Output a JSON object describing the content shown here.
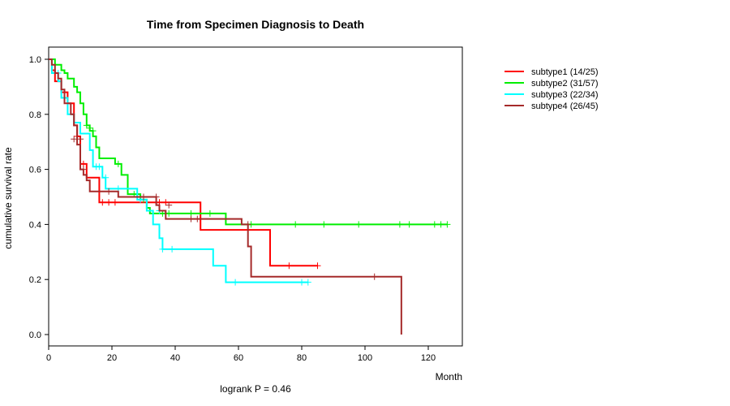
{
  "chart_data": {
    "type": "line",
    "subtype": "kaplan-meier",
    "title": "Time from Specimen Diagnosis to Death",
    "xlabel": "Month",
    "ylabel": "cumulative survival rate",
    "xlim": [
      0,
      130
    ],
    "ylim": [
      0,
      1
    ],
    "x_ticks": [
      0,
      20,
      40,
      60,
      80,
      100,
      120
    ],
    "y_ticks": [
      0.0,
      0.2,
      0.4,
      0.6,
      0.8,
      1.0
    ],
    "y_tick_labels": [
      "0.0",
      "0.2",
      "0.4",
      "0.6",
      "0.8",
      "1.0"
    ],
    "annotation": "logrank P = 0.46",
    "legend_position": "top-right-outside",
    "series": [
      {
        "name": "subtype1 (14/25)",
        "color": "#ff0000",
        "steps": [
          [
            0,
            1.0
          ],
          [
            1,
            0.96
          ],
          [
            2,
            0.92
          ],
          [
            4,
            0.88
          ],
          [
            6,
            0.84
          ],
          [
            8,
            0.76
          ],
          [
            9,
            0.72
          ],
          [
            10,
            0.62
          ],
          [
            12,
            0.57
          ],
          [
            16,
            0.48
          ],
          [
            48,
            0.38
          ],
          [
            70,
            0.25
          ],
          [
            85,
            0.25
          ]
        ],
        "censored": [
          [
            9,
            0.72
          ],
          [
            11,
            0.62
          ],
          [
            17,
            0.48
          ],
          [
            19,
            0.48
          ],
          [
            21,
            0.48
          ],
          [
            35,
            0.48
          ],
          [
            37,
            0.48
          ],
          [
            76,
            0.25
          ],
          [
            85,
            0.25
          ]
        ]
      },
      {
        "name": "subtype2 (31/57)",
        "color": "#00ee00",
        "steps": [
          [
            0,
            1.0
          ],
          [
            2,
            0.98
          ],
          [
            4,
            0.96
          ],
          [
            5,
            0.95
          ],
          [
            6,
            0.93
          ],
          [
            8,
            0.9
          ],
          [
            9,
            0.88
          ],
          [
            10,
            0.84
          ],
          [
            11,
            0.8
          ],
          [
            12,
            0.76
          ],
          [
            13,
            0.74
          ],
          [
            14,
            0.72
          ],
          [
            15,
            0.68
          ],
          [
            16,
            0.64
          ],
          [
            21,
            0.62
          ],
          [
            23,
            0.58
          ],
          [
            25,
            0.51
          ],
          [
            29,
            0.49
          ],
          [
            31,
            0.46
          ],
          [
            32,
            0.44
          ],
          [
            56,
            0.4
          ],
          [
            126,
            0.4
          ]
        ],
        "censored": [
          [
            12,
            0.76
          ],
          [
            13,
            0.75
          ],
          [
            14,
            0.74
          ],
          [
            22,
            0.62
          ],
          [
            27,
            0.51
          ],
          [
            30,
            0.49
          ],
          [
            36,
            0.44
          ],
          [
            38,
            0.44
          ],
          [
            45,
            0.44
          ],
          [
            51,
            0.44
          ],
          [
            64,
            0.4
          ],
          [
            78,
            0.4
          ],
          [
            87,
            0.4
          ],
          [
            98,
            0.4
          ],
          [
            111,
            0.4
          ],
          [
            114,
            0.4
          ],
          [
            122,
            0.4
          ],
          [
            124,
            0.4
          ],
          [
            126,
            0.4
          ]
        ]
      },
      {
        "name": "subtype3 (22/34)",
        "color": "#00ffff",
        "steps": [
          [
            0,
            1.0
          ],
          [
            1,
            0.95
          ],
          [
            3,
            0.92
          ],
          [
            4,
            0.86
          ],
          [
            6,
            0.8
          ],
          [
            8,
            0.77
          ],
          [
            10,
            0.73
          ],
          [
            13,
            0.67
          ],
          [
            14,
            0.61
          ],
          [
            17,
            0.57
          ],
          [
            18,
            0.53
          ],
          [
            28,
            0.49
          ],
          [
            31,
            0.45
          ],
          [
            32,
            0.45
          ],
          [
            33,
            0.4
          ],
          [
            35,
            0.35
          ],
          [
            36,
            0.31
          ],
          [
            52,
            0.25
          ],
          [
            56,
            0.19
          ],
          [
            82,
            0.19
          ]
        ],
        "censored": [
          [
            3,
            0.95
          ],
          [
            15,
            0.61
          ],
          [
            16,
            0.61
          ],
          [
            18,
            0.57
          ],
          [
            22,
            0.53
          ],
          [
            29,
            0.49
          ],
          [
            35,
            0.45
          ],
          [
            36,
            0.31
          ],
          [
            39,
            0.31
          ],
          [
            59,
            0.19
          ],
          [
            80,
            0.19
          ],
          [
            82,
            0.19
          ]
        ]
      },
      {
        "name": "subtype4 (26/45)",
        "color": "#a52a2a",
        "steps": [
          [
            0,
            1.0
          ],
          [
            1,
            0.98
          ],
          [
            2,
            0.95
          ],
          [
            3,
            0.93
          ],
          [
            4,
            0.89
          ],
          [
            5,
            0.84
          ],
          [
            7,
            0.8
          ],
          [
            8,
            0.76
          ],
          [
            9,
            0.69
          ],
          [
            10,
            0.6
          ],
          [
            11,
            0.58
          ],
          [
            12,
            0.56
          ],
          [
            13,
            0.52
          ],
          [
            14,
            0.52
          ],
          [
            18,
            0.52
          ],
          [
            22,
            0.5
          ],
          [
            34,
            0.47
          ],
          [
            35,
            0.45
          ],
          [
            37,
            0.42
          ],
          [
            61,
            0.4
          ],
          [
            63,
            0.32
          ],
          [
            64,
            0.21
          ],
          [
            111,
            0.21
          ],
          [
            111.5,
            0.0
          ]
        ],
        "censored": [
          [
            8,
            0.71
          ],
          [
            10,
            0.71
          ],
          [
            11,
            0.6
          ],
          [
            19,
            0.52
          ],
          [
            30,
            0.5
          ],
          [
            34,
            0.5
          ],
          [
            38,
            0.47
          ],
          [
            45,
            0.42
          ],
          [
            47,
            0.42
          ],
          [
            63,
            0.4
          ],
          [
            103,
            0.21
          ]
        ]
      }
    ]
  }
}
